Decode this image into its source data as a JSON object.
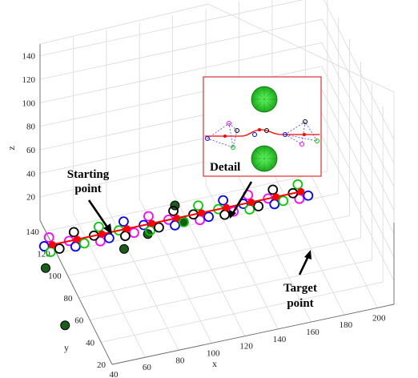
{
  "chart_data": {
    "type": "scatter3d",
    "xlabel": "x",
    "ylabel": "y",
    "zlabel": "z",
    "xticks": [
      "40",
      "60",
      "80",
      "100",
      "120",
      "140",
      "160",
      "180",
      "200"
    ],
    "yticks": [
      "20",
      "40",
      "60",
      "80",
      "100",
      "120",
      "140"
    ],
    "zticks": [
      "20",
      "40",
      "60",
      "80",
      "100",
      "120",
      "140"
    ],
    "grid": true,
    "path": {
      "color": "#ff0000",
      "points_xy_at_z0": [
        [
          40,
          128
        ],
        [
          55,
          128
        ],
        [
          70,
          128
        ],
        [
          85,
          128
        ],
        [
          100,
          128
        ],
        [
          115,
          128
        ],
        [
          130,
          128
        ],
        [
          145,
          128
        ],
        [
          160,
          128
        ],
        [
          175,
          128
        ],
        [
          190,
          128
        ]
      ]
    },
    "ring_colors": [
      "#ff00ff",
      "#0000ff",
      "#00cc00",
      "#000000"
    ],
    "obstacles_color": "#1a5c1a",
    "obstacles": [
      [
        30,
        110,
        0
      ],
      [
        25,
        60,
        0
      ],
      [
        78,
        112,
        0
      ],
      [
        95,
        120,
        0
      ],
      [
        118,
        124,
        0
      ],
      [
        115,
        131,
        8
      ]
    ],
    "annotations": {
      "start": "Starting point",
      "target": "Target point",
      "detail": "Detail"
    }
  }
}
